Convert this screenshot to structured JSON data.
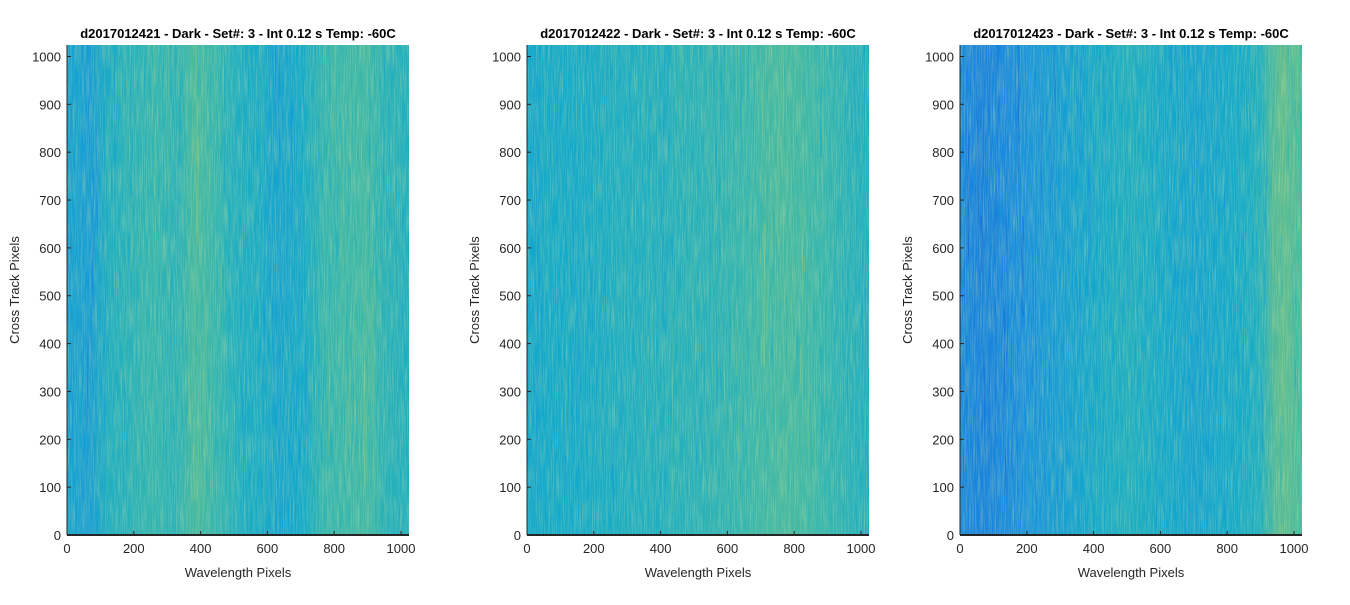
{
  "figure": {
    "background": "#ffffff",
    "colormap": [
      "#0f5fd6",
      "#1a8fe0",
      "#12aacb",
      "#3db8a8",
      "#8ec46e",
      "#c8c855"
    ]
  },
  "chart_data": [
    {
      "type": "heatmap",
      "title": "d2017012421 - Dark - Set#: 3 - Int 0.12 s Temp: -60C",
      "xlabel": "Wavelength Pixels",
      "ylabel": "Cross Track Pixels",
      "xlim": [
        0,
        1024
      ],
      "ylim": [
        0,
        1024
      ],
      "xticks": [
        0,
        200,
        400,
        600,
        800,
        1000
      ],
      "yticks": [
        0,
        100,
        200,
        300,
        400,
        500,
        600,
        700,
        800,
        900,
        1000
      ],
      "column_intensity": {
        "x": [
          0,
          64,
          128,
          192,
          256,
          320,
          384,
          448,
          512,
          576,
          640,
          704,
          768,
          832,
          896,
          960,
          1024
        ],
        "values": [
          0.35,
          0.3,
          0.45,
          0.5,
          0.55,
          0.5,
          0.62,
          0.55,
          0.45,
          0.42,
          0.35,
          0.4,
          0.55,
          0.58,
          0.6,
          0.5,
          0.45
        ]
      }
    },
    {
      "type": "heatmap",
      "title": "d2017012422 - Dark - Set#: 3 - Int 0.12 s Temp: -60C",
      "xlabel": "Wavelength Pixels",
      "ylabel": "Cross Track Pixels",
      "xlim": [
        0,
        1024
      ],
      "ylim": [
        0,
        1024
      ],
      "xticks": [
        0,
        200,
        400,
        600,
        800,
        1000
      ],
      "yticks": [
        0,
        100,
        200,
        300,
        400,
        500,
        600,
        700,
        800,
        900,
        1000
      ],
      "column_intensity": {
        "x": [
          0,
          64,
          128,
          192,
          256,
          320,
          384,
          448,
          512,
          576,
          640,
          704,
          768,
          832,
          896,
          960,
          1024
        ],
        "values": [
          0.38,
          0.4,
          0.4,
          0.42,
          0.44,
          0.45,
          0.46,
          0.48,
          0.5,
          0.52,
          0.55,
          0.6,
          0.62,
          0.6,
          0.55,
          0.5,
          0.45
        ]
      }
    },
    {
      "type": "heatmap",
      "title": "d2017012423 - Dark - Set#: 3 - Int 0.12 s Temp: -60C",
      "xlabel": "Wavelength Pixels",
      "ylabel": "Cross Track Pixels",
      "xlim": [
        0,
        1024
      ],
      "ylim": [
        0,
        1024
      ],
      "xticks": [
        0,
        200,
        400,
        600,
        800,
        1000
      ],
      "yticks": [
        0,
        100,
        200,
        300,
        400,
        500,
        600,
        700,
        800,
        900,
        1000
      ],
      "column_intensity": {
        "x": [
          0,
          64,
          128,
          192,
          256,
          320,
          384,
          448,
          512,
          576,
          640,
          704,
          768,
          832,
          896,
          960,
          1024
        ],
        "values": [
          0.18,
          0.15,
          0.18,
          0.22,
          0.28,
          0.32,
          0.38,
          0.42,
          0.45,
          0.42,
          0.38,
          0.35,
          0.38,
          0.4,
          0.45,
          0.68,
          0.62
        ]
      }
    }
  ]
}
